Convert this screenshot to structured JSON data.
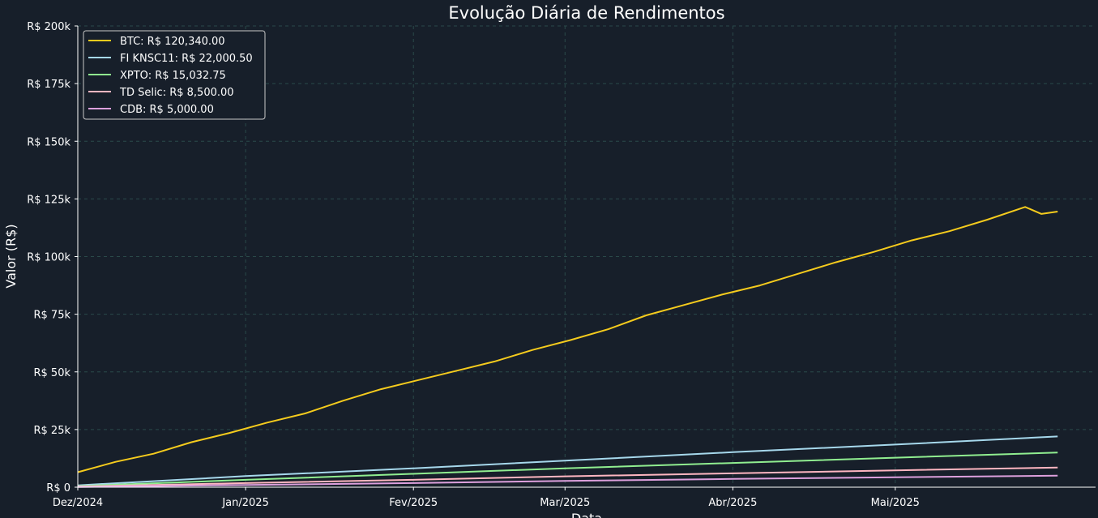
{
  "chart_data": {
    "type": "line",
    "title": "Evolução Diária de Rendimentos",
    "xlabel": "Data",
    "ylabel": "Valor (R$)",
    "x_range": [
      "2024-12-01",
      "2025-06-07"
    ],
    "x_ticks": [
      {
        "date": "2024-12-01",
        "label": "Dez/2024"
      },
      {
        "date": "2025-01-01",
        "label": "Jan/2025"
      },
      {
        "date": "2025-02-01",
        "label": "Fev/2025"
      },
      {
        "date": "2025-03-01",
        "label": "Mar/2025"
      },
      {
        "date": "2025-04-01",
        "label": "Abr/2025"
      },
      {
        "date": "2025-05-01",
        "label": "Mai/2025"
      }
    ],
    "ylim": [
      0,
      200000
    ],
    "y_ticks": [
      {
        "value": 0,
        "label": "R$ 0"
      },
      {
        "value": 25000,
        "label": "R$ 25k"
      },
      {
        "value": 50000,
        "label": "R$ 50k"
      },
      {
        "value": 75000,
        "label": "R$ 75k"
      },
      {
        "value": 100000,
        "label": "R$ 100k"
      },
      {
        "value": 125000,
        "label": "R$ 125k"
      },
      {
        "value": 150000,
        "label": "R$ 150k"
      },
      {
        "value": 175000,
        "label": "R$ 175k"
      },
      {
        "value": 200000,
        "label": "R$ 200k"
      }
    ],
    "grid": true,
    "legend_position": "top-left",
    "series": [
      {
        "name": "BTC: R$ 120,340.00",
        "color": "#f5cb1d",
        "x": [
          "2024-12-01",
          "2024-12-08",
          "2024-12-15",
          "2024-12-22",
          "2024-12-29",
          "2025-01-05",
          "2025-01-12",
          "2025-01-19",
          "2025-01-26",
          "2025-02-02",
          "2025-02-09",
          "2025-02-16",
          "2025-02-23",
          "2025-03-02",
          "2025-03-09",
          "2025-03-16",
          "2025-03-23",
          "2025-03-30",
          "2025-04-06",
          "2025-04-13",
          "2025-04-20",
          "2025-04-27",
          "2025-05-04",
          "2025-05-11",
          "2025-05-18",
          "2025-05-25",
          "2025-05-28",
          "2025-05-31"
        ],
        "values": [
          6500,
          11000,
          14500,
          19500,
          23500,
          28000,
          32000,
          37500,
          42500,
          46500,
          50500,
          54500,
          59500,
          63800,
          68500,
          74500,
          79000,
          83500,
          87500,
          92500,
          97500,
          102000,
          107000,
          111000,
          116000,
          121500,
          118500,
          119500
        ]
      },
      {
        "name": "FI KNSC11: R$ 22,000.50",
        "color": "#a6d8ec",
        "x": [
          "2024-12-01",
          "2025-01-01",
          "2025-02-01",
          "2025-03-01",
          "2025-04-01",
          "2025-05-01",
          "2025-05-31"
        ],
        "values": [
          800,
          4800,
          8200,
          11500,
          15200,
          18500,
          22000
        ]
      },
      {
        "name": "XPTO: R$ 15,032.75",
        "color": "#90ee90",
        "x": [
          "2024-12-01",
          "2025-01-01",
          "2025-02-01",
          "2025-03-01",
          "2025-04-01",
          "2025-05-01",
          "2025-05-31"
        ],
        "values": [
          500,
          3200,
          5800,
          8200,
          10500,
          12800,
          15000
        ]
      },
      {
        "name": "TD Selic: R$ 8,500.00",
        "color": "#ffb6c1",
        "x": [
          "2024-12-01",
          "2025-01-01",
          "2025-02-01",
          "2025-03-01",
          "2025-04-01",
          "2025-05-01",
          "2025-05-31"
        ],
        "values": [
          300,
          1800,
          3200,
          4700,
          6000,
          7300,
          8500
        ]
      },
      {
        "name": "CDB: R$ 5,000.00",
        "color": "#dda0dd",
        "x": [
          "2024-12-01",
          "2025-01-01",
          "2025-02-01",
          "2025-03-01",
          "2025-04-01",
          "2025-05-01",
          "2025-05-31"
        ],
        "values": [
          100,
          1000,
          1800,
          2700,
          3600,
          4300,
          5000
        ]
      }
    ]
  },
  "style": {
    "background": "#171f2a",
    "grid_color": "#2a4a4a",
    "axis_color": "#ffffff",
    "legend_bg": "#171f2a",
    "legend_border": "#c8c8c8"
  }
}
